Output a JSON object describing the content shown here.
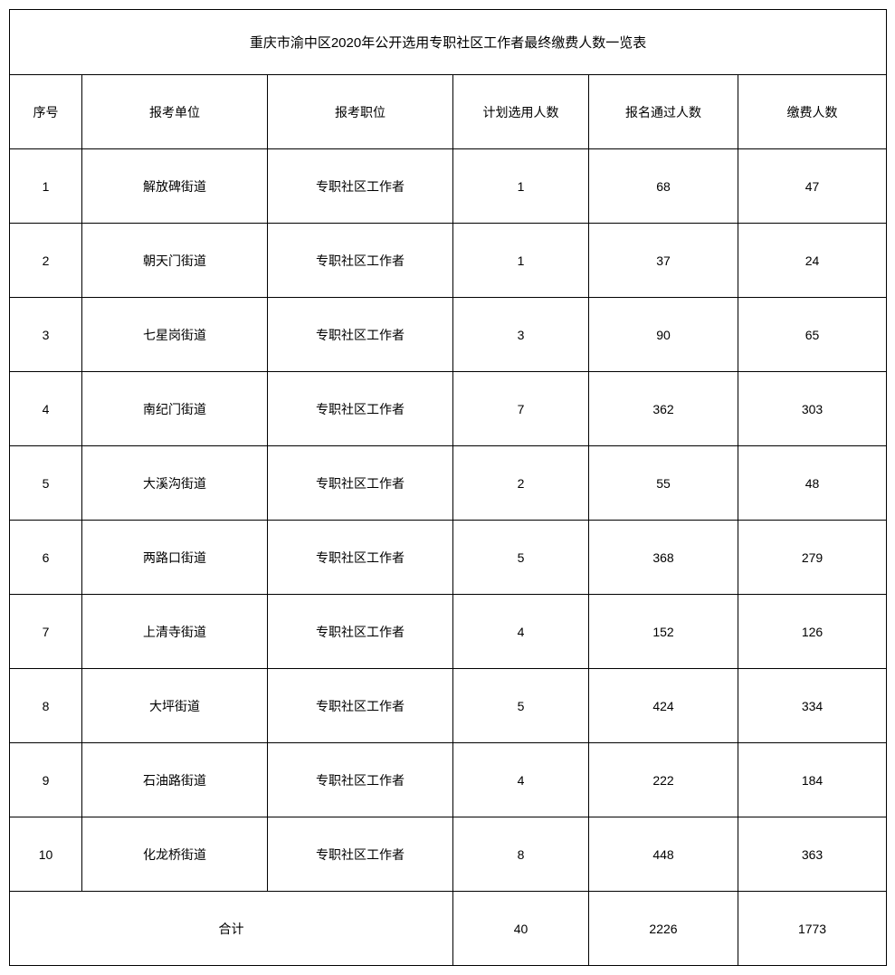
{
  "table": {
    "title": "重庆市渝中区2020年公开选用专职社区工作者最终缴费人数一览表",
    "columns": [
      "序号",
      "报考单位",
      "报考职位",
      "计划选用人数",
      "报名通过人数",
      "缴费人数"
    ],
    "rows": [
      [
        "1",
        "解放碑街道",
        "专职社区工作者",
        "1",
        "68",
        "47"
      ],
      [
        "2",
        "朝天门街道",
        "专职社区工作者",
        "1",
        "37",
        "24"
      ],
      [
        "3",
        "七星岗街道",
        "专职社区工作者",
        "3",
        "90",
        "65"
      ],
      [
        "4",
        "南纪门街道",
        "专职社区工作者",
        "7",
        "362",
        "303"
      ],
      [
        "5",
        "大溪沟街道",
        "专职社区工作者",
        "2",
        "55",
        "48"
      ],
      [
        "6",
        "两路口街道",
        "专职社区工作者",
        "5",
        "368",
        "279"
      ],
      [
        "7",
        "上清寺街道",
        "专职社区工作者",
        "4",
        "152",
        "126"
      ],
      [
        "8",
        "大坪街道",
        "专职社区工作者",
        "5",
        "424",
        "334"
      ],
      [
        "9",
        "石油路街道",
        "专职社区工作者",
        "4",
        "222",
        "184"
      ],
      [
        "10",
        "化龙桥街道",
        "专职社区工作者",
        "8",
        "448",
        "363"
      ]
    ],
    "total_label": "合计",
    "totals": [
      "40",
      "2226",
      "1773"
    ]
  }
}
